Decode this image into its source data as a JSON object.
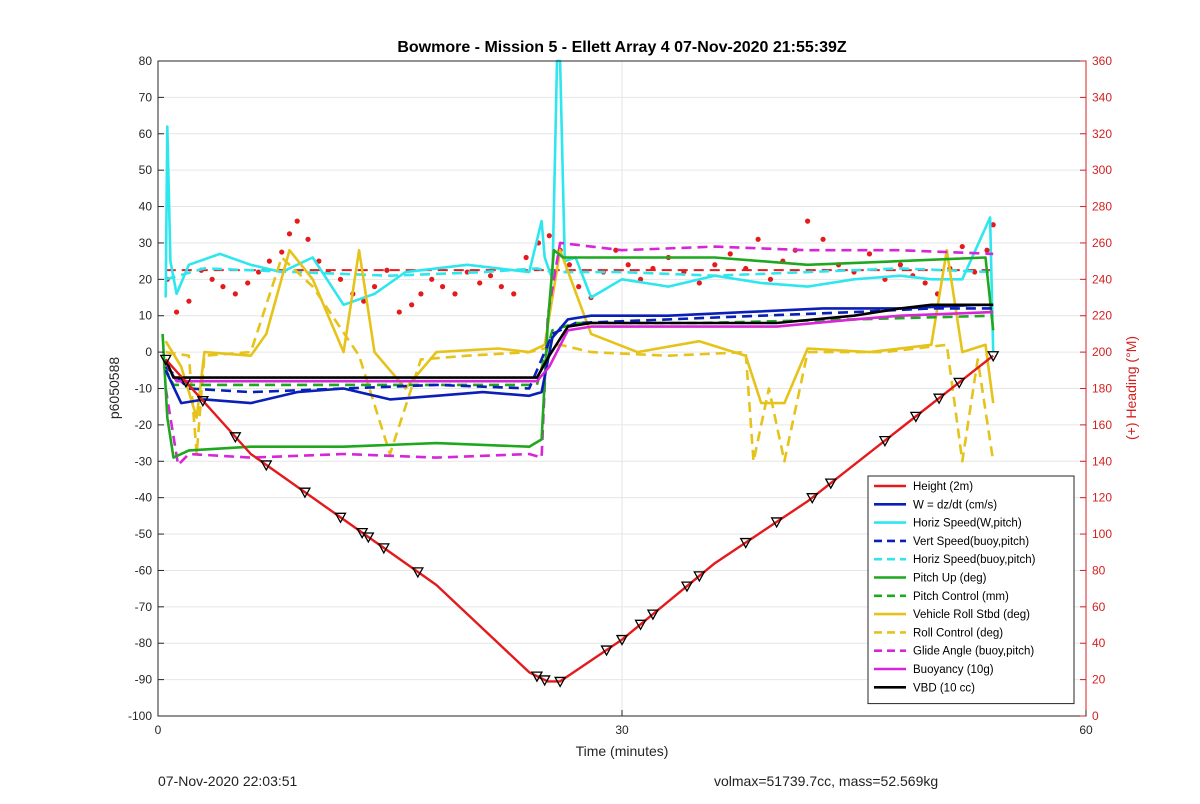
{
  "chart_data": {
    "type": "line",
    "title": "Bowmore - Mission 5 - Ellett Array 4 07-Nov-2020 21:55:39Z",
    "xlabel": "Time (minutes)",
    "ylabel": "p6050588",
    "y2label": "(+) Heading (°M)",
    "xlim": [
      0,
      60
    ],
    "ylim": [
      -100,
      80
    ],
    "y2lim": [
      0,
      360
    ],
    "xticks": [
      0,
      30,
      60
    ],
    "yticks": [
      -100,
      -90,
      -80,
      -70,
      -60,
      -50,
      -40,
      -30,
      -20,
      -10,
      0,
      10,
      20,
      30,
      40,
      50,
      60,
      70,
      80
    ],
    "y2ticks": [
      0,
      20,
      40,
      60,
      80,
      100,
      120,
      140,
      160,
      180,
      200,
      220,
      240,
      260,
      280,
      300,
      320,
      340,
      360
    ],
    "grid": true,
    "legend_position": "bottom-right",
    "colors": {
      "red": "#e41a1c",
      "blue": "#0a1fb8",
      "cyan": "#2ee6ee",
      "green": "#1fa81f",
      "yellow": "#e6c31a",
      "magenta": "#d726d7",
      "black": "#000000",
      "heading_axis": "#d42020"
    },
    "series": [
      {
        "name": "Height (2m)",
        "color": "red",
        "dash": false,
        "x": [
          0.5,
          6,
          12,
          18,
          24,
          25.2,
          26,
          30,
          36,
          42,
          48,
          54
        ],
        "y": [
          -2,
          -28,
          -46,
          -64,
          -88,
          -90.5,
          -90.5,
          -79,
          -58,
          -41,
          -21,
          -1
        ]
      },
      {
        "name": "W = dz/dt (cm/s)",
        "color": "blue",
        "dash": false,
        "x": [
          0.5,
          1.5,
          3,
          6,
          9,
          12,
          15,
          18,
          21,
          24,
          24.8,
          25.5,
          26.5,
          28,
          33,
          38,
          43,
          48,
          53,
          54
        ],
        "y": [
          -5,
          -14,
          -13,
          -14,
          -11,
          -10,
          -13,
          -12,
          -11,
          -12,
          -11,
          4,
          9,
          10,
          10,
          11,
          12,
          12,
          13,
          13
        ]
      },
      {
        "name": "Horiz Speed(W,pitch)",
        "color": "cyan",
        "dash": false,
        "x": [
          0.5,
          0.6,
          0.8,
          1.2,
          2,
          4,
          6,
          8,
          10,
          12,
          14,
          16,
          18,
          20,
          22,
          24,
          24.8,
          25,
          25.5,
          25.8,
          26,
          26.3,
          27,
          28,
          30,
          33,
          36,
          39,
          42,
          45,
          48,
          50,
          52,
          53.8,
          54
        ],
        "y": [
          15,
          62,
          25,
          16,
          24,
          27,
          24,
          22,
          26,
          13,
          16,
          22,
          23,
          24,
          23,
          22,
          36,
          26,
          20,
          80,
          80,
          25,
          26,
          15,
          20,
          18,
          21,
          19,
          18,
          20,
          21,
          20,
          20,
          37,
          0
        ]
      },
      {
        "name": "Vert Speed(buoy,pitch)",
        "color": "blue",
        "dash": true,
        "x": [
          0.5,
          2,
          6,
          12,
          18,
          24,
          25.5,
          27,
          33,
          39,
          45,
          50,
          54
        ],
        "y": [
          -4,
          -10,
          -11,
          -10,
          -9,
          -10,
          5,
          8,
          9,
          10,
          11,
          12,
          12
        ]
      },
      {
        "name": "Horiz Speed(buoy,pitch)",
        "color": "cyan",
        "dash": true,
        "x": [
          0.5,
          3,
          9,
          15,
          21,
          24.5,
          25.5,
          30,
          36,
          42,
          48,
          54
        ],
        "y": [
          20,
          23,
          22,
          21,
          22,
          23,
          22,
          22,
          21,
          22,
          23,
          22
        ]
      },
      {
        "name": "Pitch Up (deg)",
        "color": "green",
        "dash": false,
        "x": [
          0.3,
          0.6,
          1,
          2,
          6,
          12,
          18,
          24,
          24.8,
          25.2,
          25.6,
          26.2,
          30,
          36,
          42,
          48,
          53.5,
          54
        ],
        "y": [
          5,
          -18,
          -29,
          -27,
          -26,
          -26,
          -25,
          -26,
          -24,
          8,
          28,
          26,
          26,
          26,
          24,
          25,
          26,
          6
        ]
      },
      {
        "name": "Pitch Control (mm)",
        "color": "green",
        "dash": true,
        "x": [
          0.4,
          1,
          5,
          12,
          20,
          24.5,
          25.5,
          27,
          35,
          45,
          54
        ],
        "y": [
          -4,
          -9,
          -9,
          -9,
          -9,
          -9,
          6,
          8,
          8,
          9,
          10
        ]
      },
      {
        "name": "Vehicle Roll Stbd (deg)",
        "color": "yellow",
        "dash": false,
        "x": [
          0.5,
          1.5,
          2.5,
          3,
          6,
          7,
          8.5,
          10,
          12,
          13,
          14,
          16,
          18,
          22,
          24,
          25,
          26,
          28,
          31,
          35,
          38,
          39,
          40.5,
          42,
          46,
          50,
          51,
          52,
          53.5,
          54
        ],
        "y": [
          3,
          -4,
          -18,
          0,
          -1,
          5,
          28,
          20,
          0,
          28,
          0,
          -10,
          0,
          1,
          0,
          2,
          28,
          5,
          0,
          3,
          -1,
          -14,
          -14,
          1,
          0,
          2,
          28,
          0,
          2,
          -14
        ]
      },
      {
        "name": "Roll Control (deg)",
        "color": "yellow",
        "dash": true,
        "x": [
          0.5,
          2,
          2.5,
          3,
          6,
          8,
          10,
          13,
          15,
          17,
          20,
          24,
          26,
          28,
          33,
          38,
          38.5,
          39.5,
          40.5,
          42,
          47,
          51,
          52,
          53,
          54
        ],
        "y": [
          0,
          -1,
          -28,
          -1,
          0,
          26,
          18,
          -1,
          -28,
          -2,
          -1,
          0,
          2,
          0,
          -1,
          0,
          -30,
          -10,
          -30,
          0,
          0,
          2,
          -30,
          -2,
          -30
        ]
      },
      {
        "name": "Glide Angle (buoy,pitch)",
        "color": "magenta",
        "dash": true,
        "x": [
          0.5,
          1.3,
          2,
          6,
          12,
          18,
          24,
          24.8,
          25.2,
          26,
          30,
          36,
          42,
          48,
          54
        ],
        "y": [
          -10,
          -31,
          -28,
          -29,
          -28,
          -29,
          -28,
          -29,
          10,
          30,
          28,
          29,
          28,
          28,
          27
        ]
      },
      {
        "name": "Buoyancy (10g)",
        "color": "magenta",
        "dash": false,
        "x": [
          0.5,
          1.2,
          4,
          10,
          18,
          24.5,
          25.3,
          26.5,
          28,
          34,
          40,
          45,
          48,
          54
        ],
        "y": [
          -3,
          -8,
          -8,
          -8,
          -8,
          -8,
          -4,
          6,
          7,
          7,
          7,
          9,
          10,
          11
        ]
      },
      {
        "name": "VBD (10 cc)",
        "color": "black",
        "dash": false,
        "x": [
          0.5,
          1,
          6,
          12,
          18,
          24.5,
          25.3,
          26.5,
          28,
          34,
          40,
          45,
          48,
          50,
          54
        ],
        "y": [
          -2,
          -7,
          -7,
          -7,
          -7,
          -7,
          -1,
          7,
          8,
          8,
          8,
          10,
          12,
          13,
          13
        ]
      }
    ],
    "heading_scatter": {
      "name": "Heading",
      "color": "red",
      "x": [
        0.6,
        1.2,
        2,
        2.8,
        3.5,
        4.2,
        5,
        5.8,
        6.5,
        7.2,
        8,
        8.5,
        9,
        9.7,
        10.4,
        11,
        11.8,
        12.6,
        13.3,
        14,
        14.8,
        15.6,
        16.4,
        17,
        17.7,
        18.4,
        19.2,
        20,
        20.8,
        21.5,
        22.2,
        23,
        23.8,
        24.6,
        25.3,
        26,
        26.6,
        27.2,
        28,
        28.8,
        29.6,
        30.4,
        31.2,
        32,
        33,
        34,
        35,
        36,
        37,
        38,
        38.8,
        39.6,
        40.4,
        41.2,
        42,
        43,
        44,
        45,
        46,
        47,
        48,
        48.8,
        49.6,
        50.4,
        51.2,
        52,
        52.8,
        53.6,
        54
      ],
      "y": [
        240,
        222,
        228,
        245,
        240,
        236,
        232,
        238,
        244,
        250,
        255,
        265,
        272,
        262,
        250,
        244,
        240,
        232,
        228,
        236,
        245,
        222,
        226,
        232,
        240,
        236,
        232,
        244,
        238,
        242,
        236,
        232,
        252,
        260,
        264,
        256,
        248,
        236,
        230,
        244,
        256,
        248,
        240,
        246,
        252,
        244,
        238,
        248,
        254,
        246,
        262,
        240,
        250,
        256,
        272,
        262,
        248,
        244,
        254,
        240,
        248,
        242,
        238,
        232,
        246,
        258,
        244,
        256,
        270
      ]
    },
    "dive_markers": {
      "name": "Height markers",
      "x": [
        0.5,
        1.8,
        2.9,
        5,
        7,
        9.5,
        11.8,
        13.2,
        13.6,
        14.6,
        16.8,
        24.5,
        25,
        26,
        29,
        30,
        31.2,
        32,
        34.2,
        35,
        38,
        40,
        42.3,
        43.5,
        47,
        49,
        50.5,
        51.8,
        54
      ]
    },
    "legend": [
      "Height (2m)",
      "W = dz/dt (cm/s)",
      "Horiz Speed(W,pitch)",
      "Vert Speed(buoy,pitch)",
      "Horiz Speed(buoy,pitch)",
      "Pitch Up (deg)",
      "Pitch Control (mm)",
      "Vehicle Roll Stbd (deg)",
      "Roll Control (deg)",
      "Glide Angle (buoy,pitch)",
      "Buoyancy (10g)",
      "VBD (10 cc)"
    ]
  },
  "footer": {
    "left": "07-Nov-2020 22:03:51",
    "right": "volmax=51739.7cc, mass=52.569kg"
  }
}
